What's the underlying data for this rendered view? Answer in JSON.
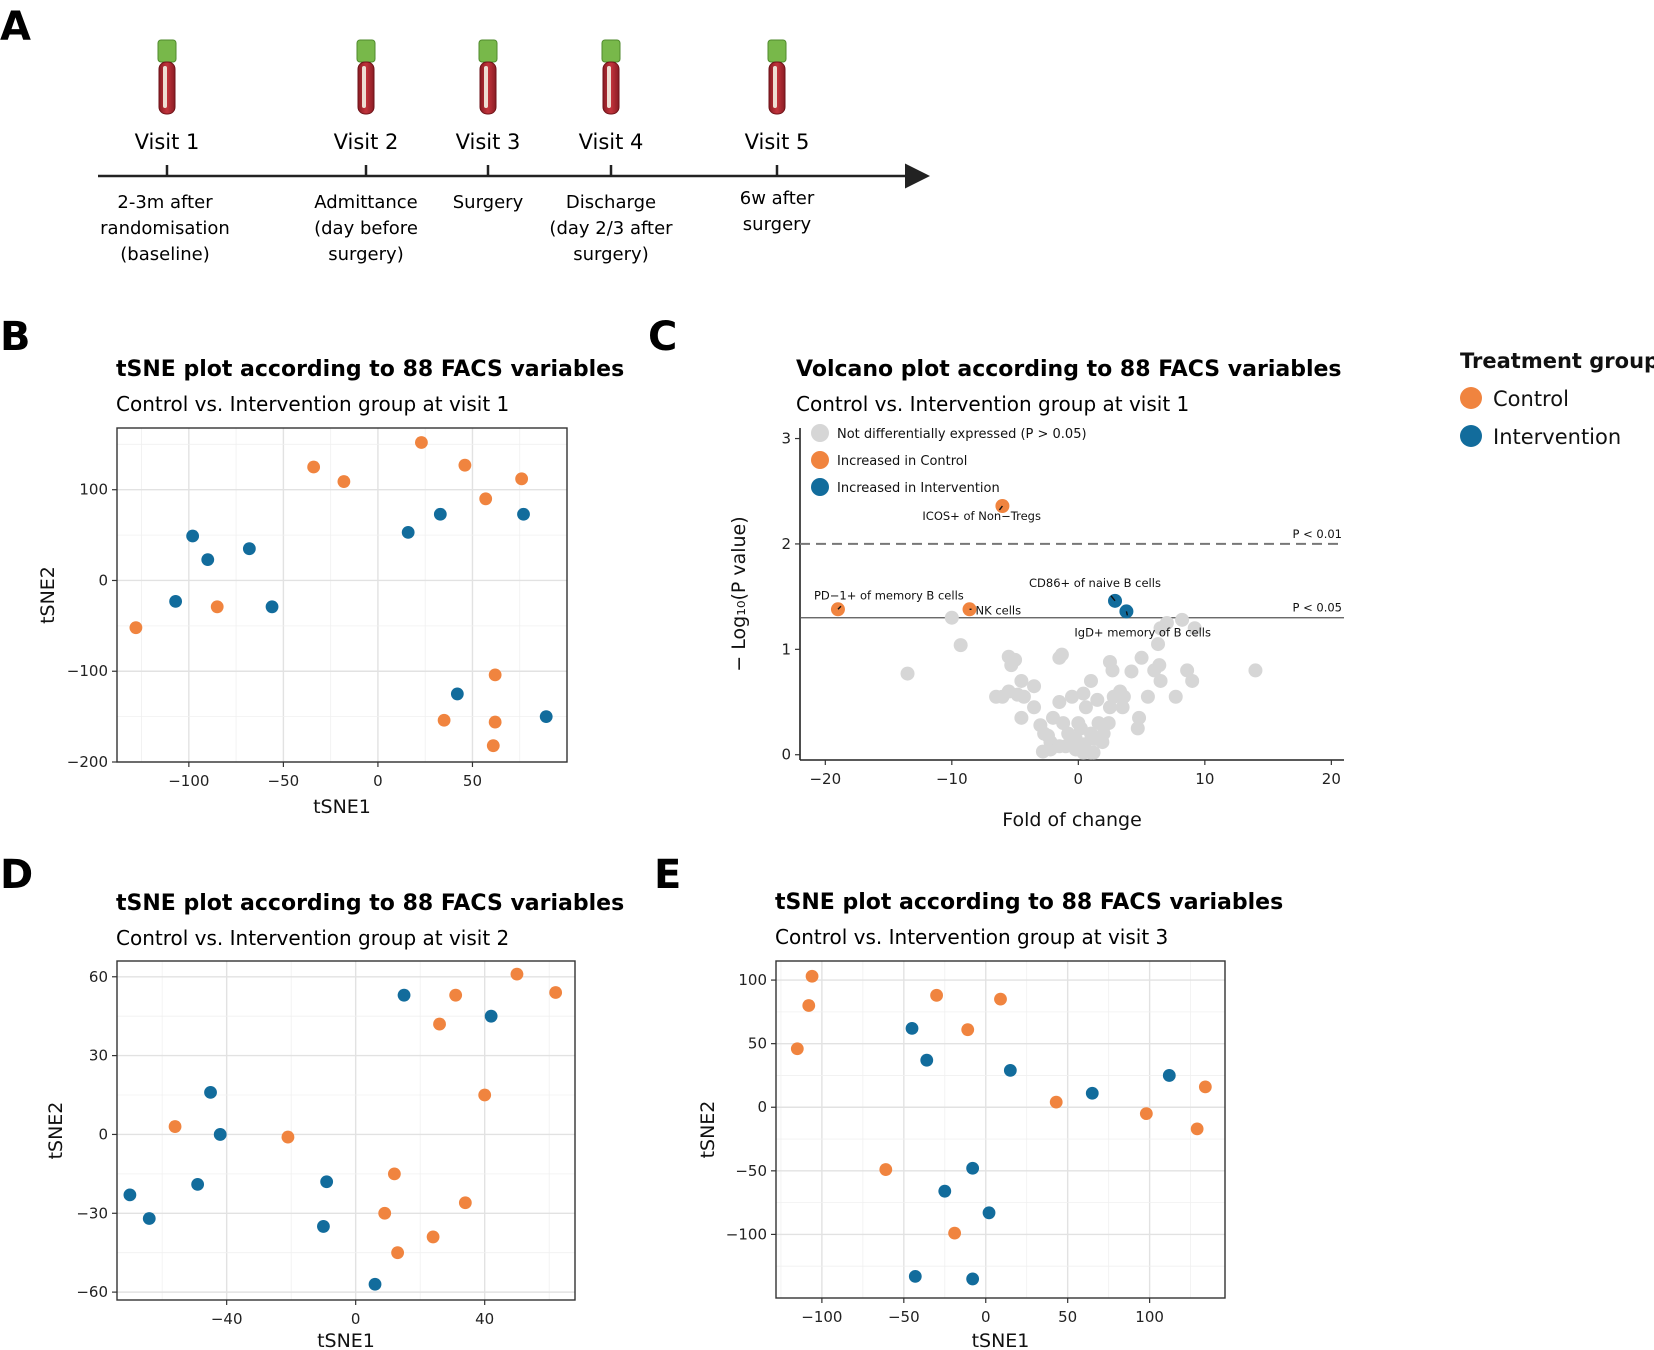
{
  "panel_letters": {
    "a": "A",
    "b": "B",
    "c": "C",
    "d": "D",
    "e": "E"
  },
  "timeline": {
    "visits": [
      {
        "label": "Visit 1",
        "desc": [
          "2-3m after",
          "randomisation",
          "(baseline)"
        ]
      },
      {
        "label": "Visit 2",
        "desc": [
          "Admittance",
          "(day before",
          "surgery)"
        ]
      },
      {
        "label": "Visit 3",
        "desc": [
          "Surgery"
        ]
      },
      {
        "label": "Visit 4",
        "desc": [
          "Discharge",
          "(day 2/3 after",
          "surgery)"
        ]
      },
      {
        "label": "Visit 5",
        "desc": [
          "6w after",
          "surgery"
        ]
      }
    ]
  },
  "colors": {
    "control": "#f0843f",
    "intervention": "#126c9c",
    "ns": "#d6d6d6"
  },
  "treatment_legend": {
    "title": "Treatment group",
    "items": [
      "Control",
      "Intervention"
    ]
  },
  "chart_data": [
    {
      "id": "B",
      "type": "scatter",
      "title": "tSNE plot according to 88 FACS variables",
      "subtitle": "Control vs. Intervention group at visit 1",
      "xlabel": "tSNE1",
      "ylabel": "tSNE2",
      "xlim": [
        -138,
        100
      ],
      "ylim": [
        -200,
        168
      ],
      "xticks": [
        -100,
        -50,
        0,
        50
      ],
      "yticks": [
        -200,
        -100,
        0,
        100
      ],
      "xticklabels": [
        "−100",
        "−50",
        "0",
        "50"
      ],
      "yticklabels": [
        "−200",
        "−100",
        "0",
        "100"
      ],
      "series": [
        {
          "name": "Control",
          "points": [
            [
              23,
              152
            ],
            [
              -34,
              125
            ],
            [
              -18,
              109
            ],
            [
              46,
              127
            ],
            [
              57,
              90
            ],
            [
              76,
              112
            ],
            [
              -85,
              -29
            ],
            [
              -128,
              -52
            ],
            [
              62,
              -104
            ],
            [
              35,
              -154
            ],
            [
              62,
              -156
            ],
            [
              61,
              -182
            ]
          ]
        },
        {
          "name": "Intervention",
          "points": [
            [
              -98,
              49
            ],
            [
              -90,
              23
            ],
            [
              -68,
              35
            ],
            [
              -107,
              -23
            ],
            [
              -56,
              -29
            ],
            [
              16,
              53
            ],
            [
              33,
              73
            ],
            [
              77,
              73
            ],
            [
              42,
              -125
            ],
            [
              89,
              -150
            ]
          ]
        }
      ]
    },
    {
      "id": "C",
      "type": "scatter",
      "title": "Volcano plot according to 88 FACS variables",
      "subtitle": "Control vs. Intervention group at visit 1",
      "xlabel": "Fold of change",
      "ylabel": "− Log₁₀(P value)",
      "xlim": [
        -22,
        21
      ],
      "ylim": [
        -0.05,
        3.1
      ],
      "xticks": [
        -20,
        -10,
        0,
        10,
        20
      ],
      "yticks": [
        0,
        1,
        2,
        3
      ],
      "xticklabels": [
        "−20",
        "−10",
        "0",
        "10",
        "20"
      ],
      "yticklabels": [
        "0",
        "1",
        "2",
        "3"
      ],
      "thresholds": [
        {
          "y": 2,
          "label": "P < 0.01",
          "dashed": true
        },
        {
          "y": 1.3,
          "label": "P < 0.05",
          "dashed": false
        }
      ],
      "legend": [
        "Not differentially expressed (P > 0.05)",
        "Increased in Control",
        "Increased in Intervention"
      ],
      "series": [
        {
          "name": "Not differentially expressed",
          "points": [
            [
              -13.5,
              0.77
            ],
            [
              -10,
              1.3
            ],
            [
              -9.3,
              1.04
            ],
            [
              14,
              0.8
            ],
            [
              -5.5,
              0.93
            ],
            [
              -5.3,
              0.85
            ],
            [
              -5,
              0.9
            ],
            [
              -4.5,
              0.7
            ],
            [
              -6.5,
              0.55
            ],
            [
              -6,
              0.55
            ],
            [
              -5.5,
              0.6
            ],
            [
              -4.8,
              0.57
            ],
            [
              -4.3,
              0.55
            ],
            [
              -3.5,
              0.65
            ],
            [
              -1.5,
              0.92
            ],
            [
              -1.3,
              0.95
            ],
            [
              -0.5,
              0.55
            ],
            [
              0.4,
              0.58
            ],
            [
              1,
              0.7
            ],
            [
              1.5,
              0.52
            ],
            [
              2.5,
              0.88
            ],
            [
              2.7,
              0.8
            ],
            [
              3.3,
              0.6
            ],
            [
              4.2,
              0.79
            ],
            [
              5,
              0.92
            ],
            [
              6,
              0.8
            ],
            [
              6.4,
              0.85
            ],
            [
              6.3,
              1.05
            ],
            [
              7.7,
              0.55
            ],
            [
              8.6,
              0.8
            ],
            [
              9,
              0.7
            ],
            [
              8.2,
              1.28
            ],
            [
              9.2,
              1.2
            ],
            [
              7,
              1.25
            ],
            [
              6.5,
              1.2
            ],
            [
              -4.5,
              0.35
            ],
            [
              -3.5,
              0.45
            ],
            [
              -3,
              0.28
            ],
            [
              -2.7,
              0.2
            ],
            [
              -2.2,
              0.12
            ],
            [
              -2,
              0.35
            ],
            [
              -1.5,
              0.5
            ],
            [
              -1.2,
              0.3
            ],
            [
              -0.8,
              0.2
            ],
            [
              -0.2,
              0.15
            ],
            [
              0.2,
              0.25
            ],
            [
              0.6,
              0.45
            ],
            [
              0.5,
              0.1
            ],
            [
              1,
              0.2
            ],
            [
              1.3,
              0.15
            ],
            [
              1.6,
              0.3
            ],
            [
              2,
              0.2
            ],
            [
              2.4,
              0.3
            ],
            [
              2.5,
              0.45
            ],
            [
              3.5,
              0.45
            ],
            [
              4.8,
              0.35
            ],
            [
              4.7,
              0.25
            ],
            [
              -2.2,
              0.05
            ],
            [
              -2.8,
              0.03
            ],
            [
              -1,
              0.08
            ],
            [
              -0.2,
              0.05
            ],
            [
              0.4,
              0.02
            ],
            [
              1.2,
              0.02
            ],
            [
              1.9,
              0.12
            ],
            [
              2.8,
              0.55
            ],
            [
              3.6,
              0.55
            ],
            [
              6.5,
              0.7
            ],
            [
              5.5,
              0.55
            ],
            [
              -1.5,
              0.08
            ],
            [
              -2.4,
              0.18
            ],
            [
              0,
              0.3
            ],
            [
              1,
              0.02
            ],
            [
              -0.5,
              0.12
            ]
          ]
        },
        {
          "name": "Increased in Control",
          "points": [
            [
              -6,
              2.36
            ],
            [
              -19,
              1.38
            ],
            [
              -8.6,
              1.38
            ]
          ]
        },
        {
          "name": "Increased in Intervention",
          "points": [
            [
              2.9,
              1.46
            ],
            [
              3.8,
              1.36
            ]
          ]
        }
      ],
      "annotations": [
        {
          "label": "ICOS+ of Non−Tregs",
          "point": [
            -6,
            2.36
          ]
        },
        {
          "label": "PD−1+ of memory B cells",
          "point": [
            -19,
            1.38
          ]
        },
        {
          "label": "NK cells",
          "point": [
            -8.6,
            1.38
          ]
        },
        {
          "label": "CD86+ of naive B cells",
          "point": [
            2.9,
            1.46
          ]
        },
        {
          "label": "IgD+ memory of B cells",
          "point": [
            3.8,
            1.36
          ]
        }
      ]
    },
    {
      "id": "D",
      "type": "scatter",
      "title": "tSNE plot according to 88 FACS variables",
      "subtitle": "Control vs. Intervention group at visit 2",
      "xlabel": "tSNE1",
      "ylabel": "tSNE2",
      "xlim": [
        -74,
        68
      ],
      "ylim": [
        -63,
        66
      ],
      "xticks": [
        -40,
        0,
        40
      ],
      "yticks": [
        -60,
        -30,
        0,
        30,
        60
      ],
      "xticklabels": [
        "−40",
        "0",
        "40"
      ],
      "yticklabels": [
        "−60",
        "−30",
        "0",
        "30",
        "60"
      ],
      "series": [
        {
          "name": "Control",
          "points": [
            [
              50,
              61
            ],
            [
              62,
              54
            ],
            [
              31,
              53
            ],
            [
              26,
              42
            ],
            [
              40,
              15
            ],
            [
              -56,
              3
            ],
            [
              -21,
              -1
            ],
            [
              12,
              -15
            ],
            [
              34,
              -26
            ],
            [
              9,
              -30
            ],
            [
              24,
              -39
            ],
            [
              13,
              -45
            ]
          ]
        },
        {
          "name": "Intervention",
          "points": [
            [
              15,
              53
            ],
            [
              42,
              45
            ],
            [
              -45,
              16
            ],
            [
              -42,
              0
            ],
            [
              -49,
              -19
            ],
            [
              -9,
              -18
            ],
            [
              -70,
              -23
            ],
            [
              -64,
              -32
            ],
            [
              -10,
              -35
            ],
            [
              6,
              -57
            ]
          ]
        }
      ]
    },
    {
      "id": "E",
      "type": "scatter",
      "title": "tSNE plot according to 88 FACS variables",
      "subtitle": "Control vs. Intervention group at visit 3",
      "xlabel": "tSNE1",
      "ylabel": "tSNE2",
      "xlim": [
        -128,
        146
      ],
      "ylim": [
        -150,
        115
      ],
      "xticks": [
        -100,
        -50,
        0,
        50,
        100
      ],
      "yticks": [
        -100,
        -50,
        0,
        50,
        100
      ],
      "xticklabels": [
        "−100",
        "−50",
        "0",
        "50",
        "100"
      ],
      "yticklabels": [
        "−100",
        "−50",
        "0",
        "50",
        "100"
      ],
      "series": [
        {
          "name": "Control",
          "points": [
            [
              -106,
              103
            ],
            [
              -108,
              80
            ],
            [
              -115,
              46
            ],
            [
              -30,
              88
            ],
            [
              9,
              85
            ],
            [
              -11,
              61
            ],
            [
              43,
              4
            ],
            [
              98,
              -5
            ],
            [
              134,
              16
            ],
            [
              129,
              -17
            ],
            [
              -61,
              -49
            ],
            [
              -19,
              -99
            ]
          ]
        },
        {
          "name": "Intervention",
          "points": [
            [
              -45,
              62
            ],
            [
              -36,
              37
            ],
            [
              15,
              29
            ],
            [
              65,
              11
            ],
            [
              112,
              25
            ],
            [
              -8,
              -48
            ],
            [
              -25,
              -66
            ],
            [
              2,
              -83
            ],
            [
              -43,
              -133
            ],
            [
              -8,
              -135
            ]
          ]
        }
      ]
    }
  ]
}
